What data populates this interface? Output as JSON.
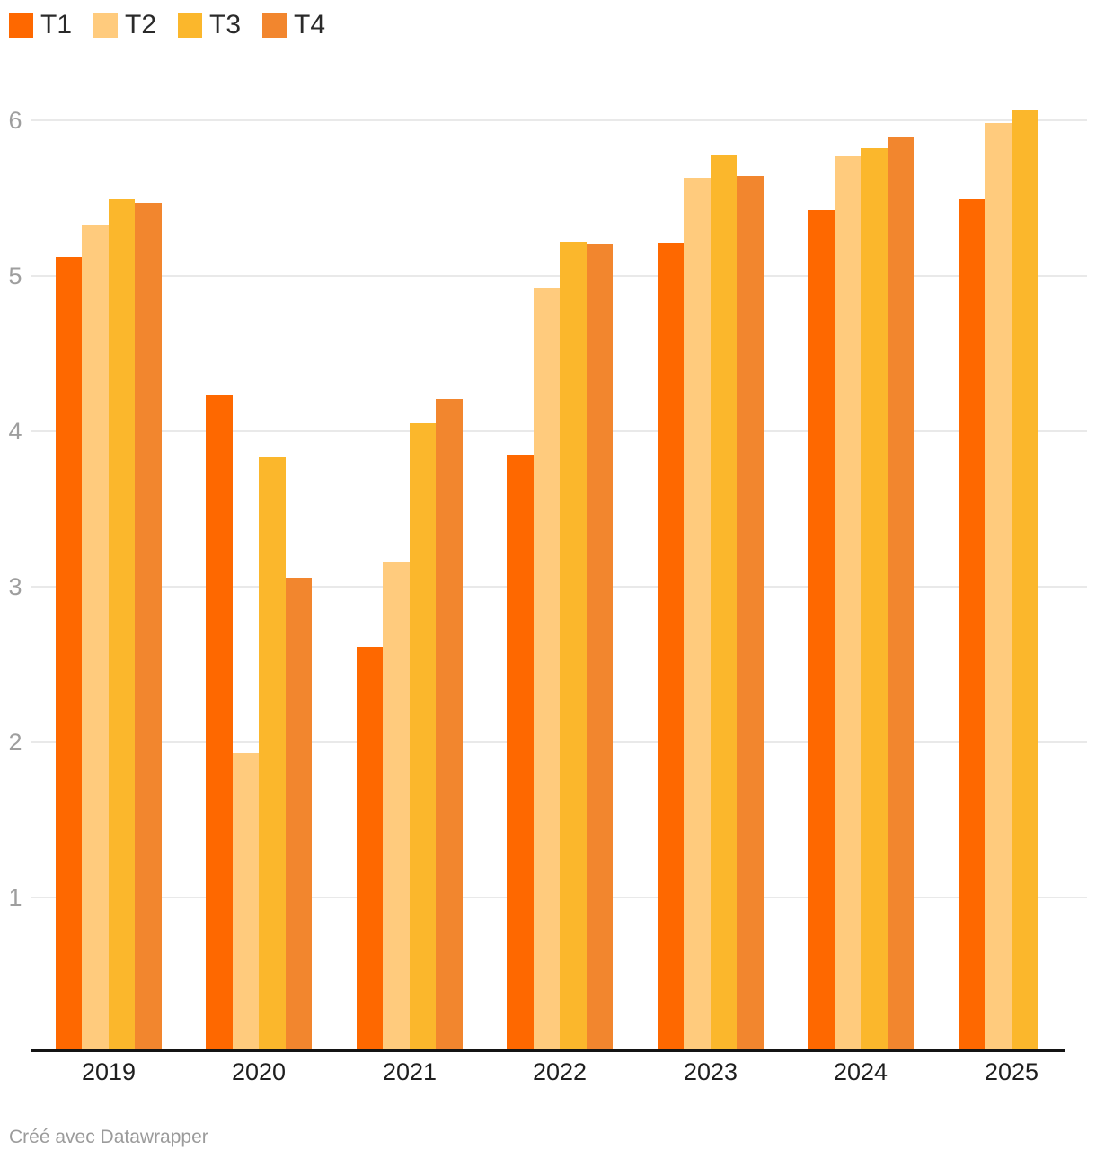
{
  "legend": {
    "items": [
      {
        "label": "T1",
        "color": "#fe6800"
      },
      {
        "label": "T2",
        "color": "#ffcb7d"
      },
      {
        "label": "T3",
        "color": "#fbb72c"
      },
      {
        "label": "T4",
        "color": "#f2862e"
      }
    ]
  },
  "chart_data": {
    "type": "bar",
    "title": "",
    "xlabel": "",
    "ylabel": "",
    "categories": [
      "2019",
      "2020",
      "2021",
      "2022",
      "2023",
      "2024",
      "2025"
    ],
    "series": [
      {
        "name": "T1",
        "color": "#fe6800",
        "values": [
          5.12,
          4.23,
          2.61,
          3.85,
          5.21,
          5.42,
          5.5
        ]
      },
      {
        "name": "T2",
        "color": "#ffcb7d",
        "values": [
          5.33,
          1.93,
          3.16,
          4.92,
          5.63,
          5.77,
          5.98
        ]
      },
      {
        "name": "T3",
        "color": "#fbb72c",
        "values": [
          5.49,
          3.83,
          4.05,
          5.22,
          5.78,
          5.82,
          6.07
        ]
      },
      {
        "name": "T4",
        "color": "#f2862e",
        "values": [
          5.47,
          3.06,
          4.21,
          5.2,
          5.64,
          5.89,
          null
        ]
      }
    ],
    "yticks": [
      1,
      2,
      3,
      4,
      5,
      6
    ],
    "ylim": [
      0,
      6.3
    ],
    "grid": true,
    "legend_position": "top-left",
    "colors": {
      "gridline": "#e9e9e9",
      "axis_line": "#141414",
      "tick_label": "#9e9e9e",
      "category_label": "#1f1f1f"
    }
  },
  "footer": {
    "credit": "Créé avec Datawrapper"
  }
}
